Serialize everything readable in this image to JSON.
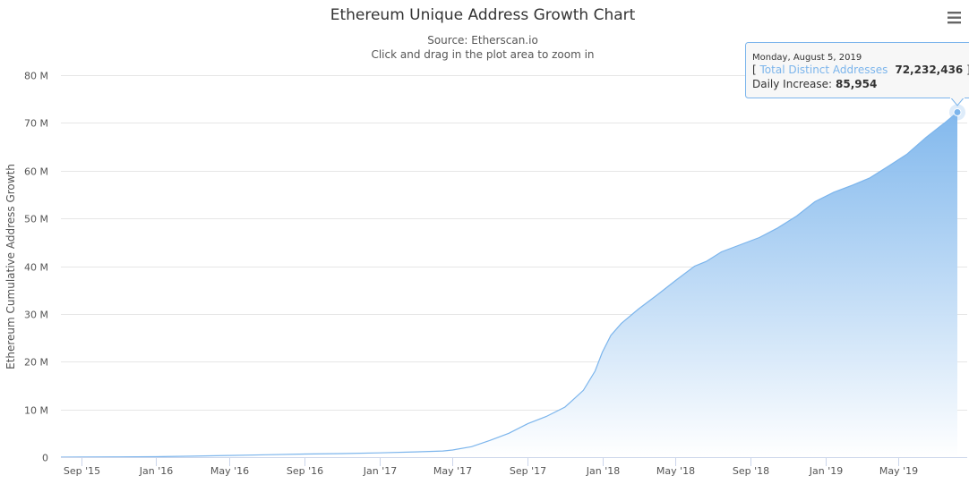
{
  "chart_data": {
    "type": "area",
    "title": "Ethereum Unique Address Growth Chart",
    "subtitle_lines": [
      "Source: Etherscan.io",
      "Click and drag in the plot area to zoom in"
    ],
    "xlabel": "",
    "ylabel": "Ethereum Cumulative Address Growth",
    "x_type": "datetime",
    "xlim": [
      "2015-07-30",
      "2019-08-05"
    ],
    "ylim": [
      0,
      80000000
    ],
    "y_ticks": [
      0,
      10000000,
      20000000,
      30000000,
      40000000,
      50000000,
      60000000,
      70000000,
      80000000
    ],
    "y_tick_labels": [
      "0",
      "10 M",
      "20 M",
      "30 M",
      "40 M",
      "50 M",
      "60 M",
      "70 M",
      "80 M"
    ],
    "x_ticks": [
      {
        "date": "2015-09-01",
        "label": "Sep '15"
      },
      {
        "date": "2016-01-01",
        "label": "Jan '16"
      },
      {
        "date": "2016-05-01",
        "label": "May '16"
      },
      {
        "date": "2016-09-01",
        "label": "Sep '16"
      },
      {
        "date": "2017-01-01",
        "label": "Jan '17"
      },
      {
        "date": "2017-05-01",
        "label": "May '17"
      },
      {
        "date": "2017-09-01",
        "label": "Sep '17"
      },
      {
        "date": "2018-01-01",
        "label": "Jan '18"
      },
      {
        "date": "2018-05-01",
        "label": "May '18"
      },
      {
        "date": "2018-09-01",
        "label": "Sep '18"
      },
      {
        "date": "2019-01-01",
        "label": "Jan '19"
      },
      {
        "date": "2019-05-01",
        "label": "May '19"
      }
    ],
    "grid": true,
    "legend": "none",
    "colors": {
      "line": "#7cb5ec",
      "area_top": "#7cb5ec",
      "area_bottom": "#ffffff",
      "grid": "#e6e6e6"
    },
    "series": [
      {
        "name": "Total Distinct Addresses",
        "points": [
          [
            "2015-07-30",
            0
          ],
          [
            "2015-09-01",
            20000
          ],
          [
            "2015-11-01",
            50000
          ],
          [
            "2016-01-01",
            100000
          ],
          [
            "2016-03-01",
            200000
          ],
          [
            "2016-05-01",
            350000
          ],
          [
            "2016-07-01",
            500000
          ],
          [
            "2016-09-01",
            650000
          ],
          [
            "2016-11-01",
            750000
          ],
          [
            "2017-01-01",
            900000
          ],
          [
            "2017-03-01",
            1100000
          ],
          [
            "2017-04-15",
            1300000
          ],
          [
            "2017-05-01",
            1500000
          ],
          [
            "2017-06-01",
            2200000
          ],
          [
            "2017-07-01",
            3500000
          ],
          [
            "2017-08-01",
            5000000
          ],
          [
            "2017-09-01",
            7000000
          ],
          [
            "2017-10-01",
            8500000
          ],
          [
            "2017-11-01",
            10500000
          ],
          [
            "2017-12-01",
            14000000
          ],
          [
            "2017-12-20",
            18000000
          ],
          [
            "2018-01-01",
            22000000
          ],
          [
            "2018-01-15",
            25500000
          ],
          [
            "2018-02-01",
            28000000
          ],
          [
            "2018-03-01",
            31000000
          ],
          [
            "2018-04-01",
            34000000
          ],
          [
            "2018-05-01",
            37000000
          ],
          [
            "2018-06-01",
            40000000
          ],
          [
            "2018-06-20",
            41000000
          ],
          [
            "2018-07-15",
            43000000
          ],
          [
            "2018-08-15",
            44500000
          ],
          [
            "2018-09-15",
            46000000
          ],
          [
            "2018-10-15",
            48000000
          ],
          [
            "2018-11-15",
            50500000
          ],
          [
            "2018-12-15",
            53500000
          ],
          [
            "2019-01-15",
            55500000
          ],
          [
            "2019-02-15",
            57000000
          ],
          [
            "2019-03-15",
            58500000
          ],
          [
            "2019-04-15",
            61000000
          ],
          [
            "2019-05-15",
            63500000
          ],
          [
            "2019-06-15",
            67000000
          ],
          [
            "2019-07-15",
            70000000
          ],
          [
            "2019-08-05",
            72232436
          ]
        ]
      }
    ]
  },
  "tooltip": {
    "date": "Monday, August 5, 2019",
    "series_label": "Total Distinct Addresses",
    "value": "72,232,436",
    "daily_label": "Daily Increase:",
    "daily_value": "85,954"
  }
}
